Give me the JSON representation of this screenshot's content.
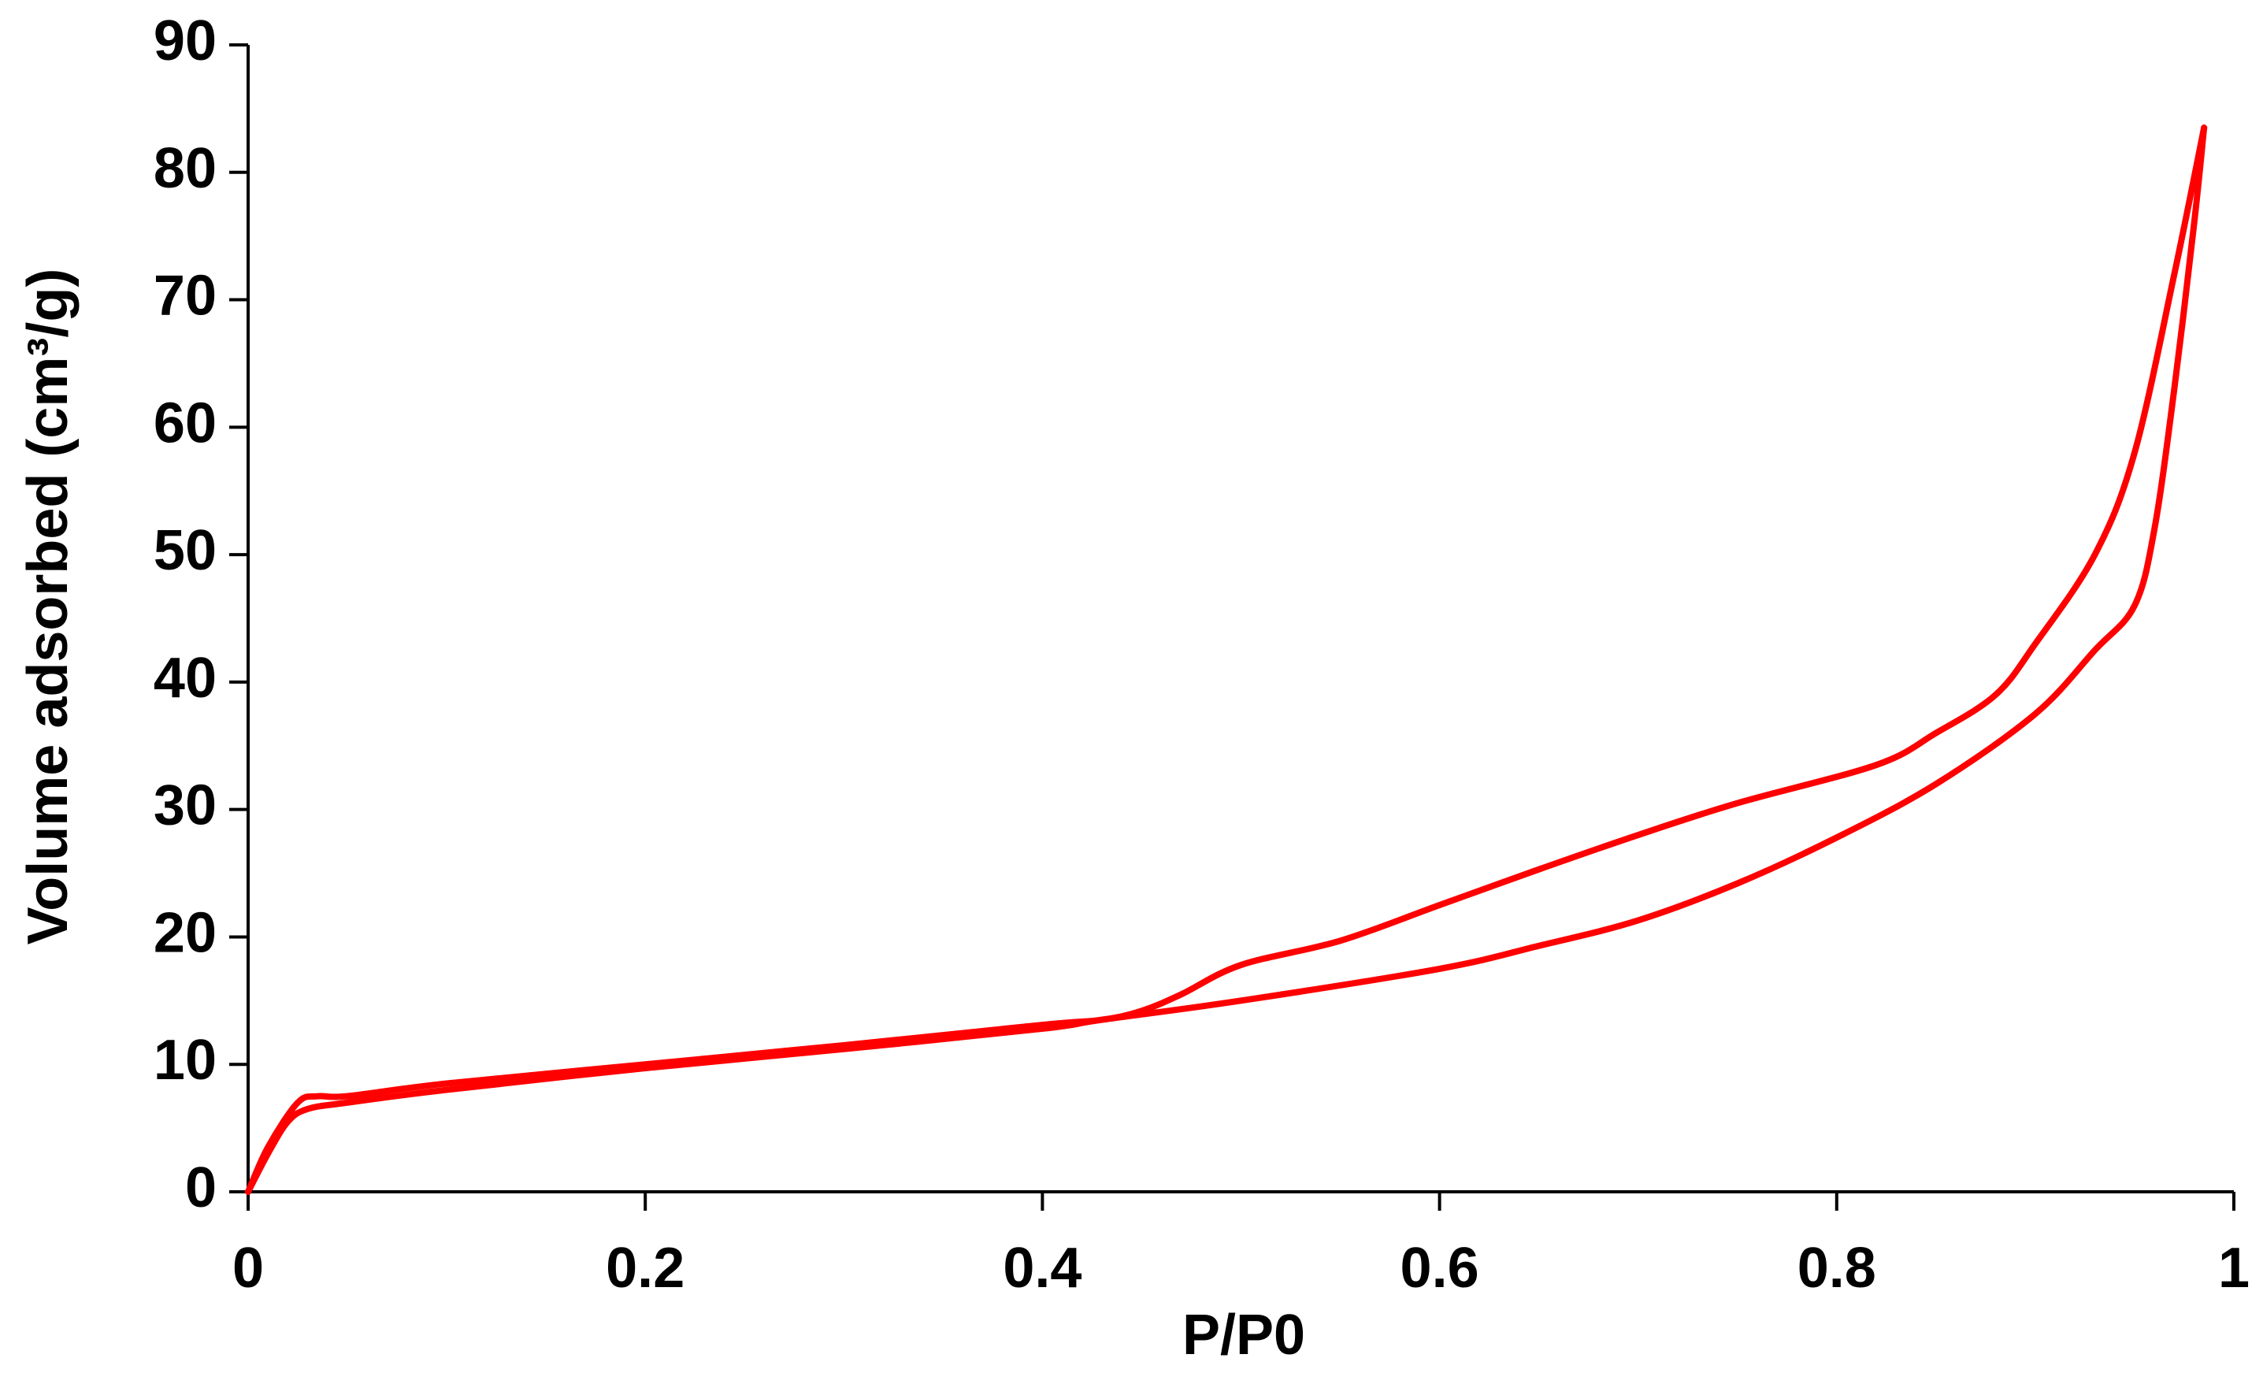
{
  "chart_data": {
    "type": "line",
    "x_label": "P/P0",
    "y_label": "Volume adsorbed (cm³/g)",
    "series": [
      {
        "color": "#ff0000",
        "x": [
          0,
          0.01,
          0.02,
          0.03,
          0.05,
          0.1,
          0.2,
          0.3,
          0.4,
          0.43,
          0.5,
          0.6,
          0.65,
          0.7,
          0.75,
          0.8,
          0.85,
          0.9,
          0.93,
          0.95,
          0.96,
          0.97,
          0.98,
          0.985
        ],
        "values": [
          0,
          3,
          5.5,
          6.5,
          7,
          8,
          9.7,
          11.2,
          12.8,
          13.5,
          15,
          17.5,
          19.3,
          21.3,
          24.2,
          27.8,
          32,
          37.5,
          42.5,
          46,
          52,
          63,
          76,
          83.5
        ]
      },
      {
        "color": "#ff0000",
        "x": [
          0.985,
          0.97,
          0.95,
          0.93,
          0.9,
          0.88,
          0.85,
          0.82,
          0.75,
          0.7,
          0.65,
          0.6,
          0.55,
          0.5,
          0.47,
          0.45,
          0.43,
          0.4,
          0.3,
          0.2,
          0.1,
          0.05,
          0.035,
          0.025,
          0.01,
          0
        ],
        "values": [
          83.5,
          72,
          58,
          50,
          43,
          39,
          36,
          33.5,
          30.5,
          28,
          25.3,
          22.5,
          19.7,
          17.8,
          15.5,
          14.2,
          13.5,
          13.1,
          11.5,
          10,
          8.5,
          7.5,
          7.5,
          7,
          3.5,
          0
        ]
      }
    ],
    "xlim": [
      0,
      1
    ],
    "xticks": [
      0,
      0.2,
      0.4,
      0.6,
      0.8,
      1
    ],
    "ylim": [
      0,
      90
    ],
    "yticks": [
      0,
      10,
      20,
      30,
      40,
      50,
      60,
      70,
      80,
      90
    ],
    "grid": false
  }
}
